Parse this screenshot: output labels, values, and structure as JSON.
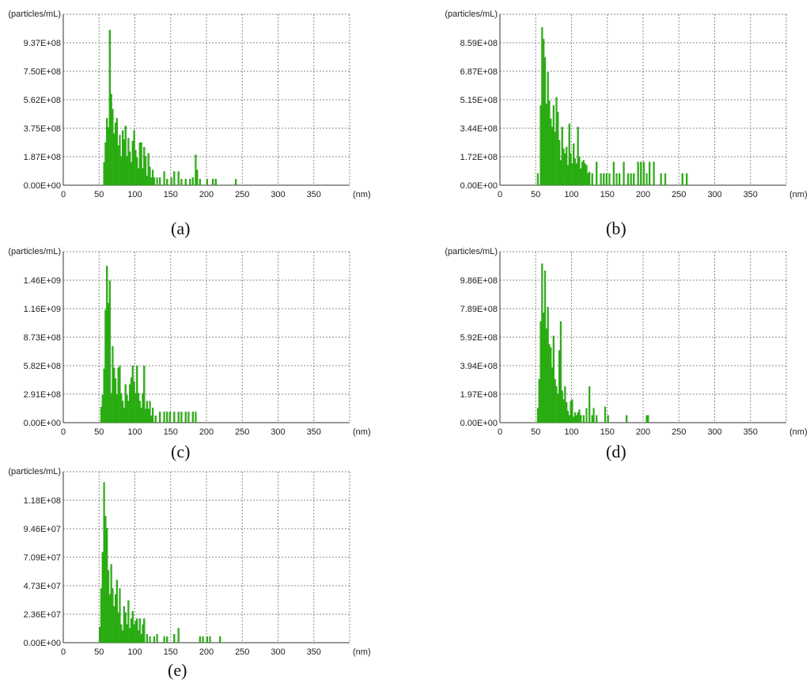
{
  "style": {
    "bar_color": "#2db814",
    "bar_stroke": "#1f8a0c"
  },
  "chart_data": [
    {
      "type": "bar",
      "caption": "(a)",
      "ylabel": "(particles/mL)",
      "xlabel": "(nm)",
      "xlim": [
        0,
        400
      ],
      "ylim": [
        0,
        1124000000
      ],
      "xticks": [
        "0",
        "50",
        "100",
        "150",
        "200",
        "250",
        "300",
        "350"
      ],
      "yticks": [
        "0.00E+00",
        "1.87E+08",
        "3.75E+08",
        "5.62E+08",
        "7.50E+08",
        "9.37E+08"
      ],
      "bin_width": 2,
      "x": [
        57,
        59,
        61,
        63,
        65,
        67,
        69,
        71,
        73,
        75,
        77,
        79,
        81,
        83,
        85,
        87,
        89,
        91,
        93,
        95,
        97,
        99,
        101,
        103,
        105,
        107,
        109,
        111,
        113,
        115,
        117,
        119,
        121,
        123,
        125,
        127,
        131,
        135,
        141,
        145,
        151,
        155,
        161,
        165,
        171,
        177,
        181,
        185,
        187,
        191,
        201,
        209,
        213,
        241
      ],
      "values": [
        150000000,
        280000000,
        440000000,
        380000000,
        1020000000,
        600000000,
        500000000,
        340000000,
        410000000,
        440000000,
        260000000,
        330000000,
        190000000,
        360000000,
        300000000,
        390000000,
        190000000,
        310000000,
        220000000,
        150000000,
        290000000,
        360000000,
        230000000,
        180000000,
        110000000,
        280000000,
        280000000,
        110000000,
        250000000,
        190000000,
        60000000,
        210000000,
        120000000,
        50000000,
        100000000,
        50000000,
        50000000,
        50000000,
        90000000,
        40000000,
        50000000,
        90000000,
        90000000,
        40000000,
        40000000,
        40000000,
        50000000,
        200000000,
        100000000,
        40000000,
        40000000,
        40000000,
        40000000,
        40000000
      ]
    },
    {
      "type": "bar",
      "caption": "(b)",
      "ylabel": "(particles/mL)",
      "xlabel": "(nm)",
      "xlim": [
        0,
        400
      ],
      "ylim": [
        0,
        1030000000
      ],
      "xticks": [
        "0",
        "50",
        "100",
        "150",
        "200",
        "250",
        "300",
        "350"
      ],
      "yticks": [
        "0.00E+00",
        "1.72E+08",
        "3.44E+08",
        "5.15E+08",
        "6.87E+08",
        "8.59E+08"
      ],
      "bin_width": 2,
      "x": [
        53,
        57,
        59,
        61,
        63,
        65,
        67,
        69,
        71,
        73,
        75,
        77,
        79,
        81,
        83,
        85,
        87,
        89,
        91,
        93,
        95,
        97,
        99,
        101,
        103,
        105,
        107,
        109,
        111,
        113,
        115,
        117,
        119,
        121,
        123,
        125,
        129,
        135,
        141,
        145,
        149,
        153,
        159,
        163,
        167,
        173,
        179,
        183,
        187,
        193,
        197,
        201,
        205,
        209,
        215,
        225,
        231,
        255,
        261
      ],
      "values": [
        70000000,
        480000000,
        950000000,
        880000000,
        770000000,
        490000000,
        680000000,
        510000000,
        400000000,
        350000000,
        480000000,
        320000000,
        530000000,
        440000000,
        270000000,
        150000000,
        350000000,
        220000000,
        190000000,
        230000000,
        120000000,
        370000000,
        190000000,
        130000000,
        250000000,
        160000000,
        130000000,
        350000000,
        170000000,
        100000000,
        140000000,
        150000000,
        130000000,
        120000000,
        70000000,
        80000000,
        70000000,
        140000000,
        70000000,
        70000000,
        70000000,
        70000000,
        140000000,
        70000000,
        70000000,
        140000000,
        70000000,
        70000000,
        70000000,
        140000000,
        140000000,
        140000000,
        70000000,
        140000000,
        140000000,
        70000000,
        70000000,
        70000000,
        70000000
      ]
    },
    {
      "type": "bar",
      "caption": "(c)",
      "ylabel": "(particles/mL)",
      "xlabel": "(nm)",
      "xlim": [
        0,
        400
      ],
      "ylim": [
        0,
        1746000000
      ],
      "xticks": [
        "0",
        "50",
        "100",
        "150",
        "200",
        "250",
        "300",
        "350"
      ],
      "yticks": [
        "0.00E+00",
        "2.91E+08",
        "5.82E+08",
        "8.73E+08",
        "1.16E+09",
        "1.46E+09"
      ],
      "bin_width": 2,
      "x": [
        53,
        55,
        57,
        59,
        61,
        63,
        65,
        67,
        69,
        71,
        73,
        75,
        77,
        79,
        81,
        83,
        85,
        87,
        89,
        91,
        93,
        95,
        97,
        99,
        101,
        103,
        105,
        107,
        109,
        111,
        113,
        115,
        117,
        119,
        121,
        123,
        125,
        129,
        135,
        141,
        145,
        149,
        155,
        161,
        165,
        171,
        175,
        181,
        185
      ],
      "values": [
        160000000,
        280000000,
        550000000,
        1150000000,
        1600000000,
        1220000000,
        1450000000,
        300000000,
        780000000,
        560000000,
        450000000,
        290000000,
        560000000,
        580000000,
        300000000,
        220000000,
        150000000,
        390000000,
        280000000,
        220000000,
        390000000,
        460000000,
        580000000,
        420000000,
        300000000,
        580000000,
        300000000,
        220000000,
        150000000,
        300000000,
        580000000,
        140000000,
        220000000,
        140000000,
        220000000,
        70000000,
        150000000,
        70000000,
        110000000,
        110000000,
        110000000,
        110000000,
        110000000,
        110000000,
        110000000,
        110000000,
        110000000,
        110000000,
        110000000
      ]
    },
    {
      "type": "bar",
      "caption": "(d)",
      "ylabel": "(particles/mL)",
      "xlabel": "(nm)",
      "xlim": [
        0,
        400
      ],
      "ylim": [
        0,
        1183000000
      ],
      "xticks": [
        "0",
        "50",
        "100",
        "150",
        "200",
        "250",
        "300",
        "350"
      ],
      "yticks": [
        "0.00E+00",
        "1.97E+08",
        "3.94E+08",
        "5.92E+08",
        "7.89E+08",
        "9.86E+08"
      ],
      "bin_width": 2,
      "x": [
        53,
        55,
        57,
        59,
        61,
        63,
        65,
        67,
        69,
        71,
        73,
        75,
        77,
        79,
        81,
        83,
        85,
        87,
        89,
        91,
        93,
        95,
        97,
        99,
        101,
        103,
        105,
        107,
        109,
        111,
        113,
        117,
        121,
        125,
        129,
        131,
        135,
        147,
        151,
        177,
        205,
        207
      ],
      "values": [
        100000000,
        300000000,
        700000000,
        1100000000,
        760000000,
        1050000000,
        650000000,
        800000000,
        540000000,
        520000000,
        380000000,
        600000000,
        300000000,
        250000000,
        200000000,
        500000000,
        700000000,
        220000000,
        160000000,
        250000000,
        140000000,
        80000000,
        50000000,
        150000000,
        160000000,
        40000000,
        70000000,
        50000000,
        70000000,
        90000000,
        50000000,
        50000000,
        100000000,
        250000000,
        50000000,
        100000000,
        50000000,
        110000000,
        50000000,
        50000000,
        50000000,
        50000000
      ]
    },
    {
      "type": "bar",
      "caption": "(e)",
      "ylabel": "(particles/mL)",
      "xlabel": "(nm)",
      "xlim": [
        0,
        400
      ],
      "ylim": [
        0,
        141900000
      ],
      "xticks": [
        "0",
        "50",
        "100",
        "150",
        "200",
        "250",
        "300",
        "350"
      ],
      "yticks": [
        "0.00E+00",
        "2.36E+07",
        "4.73E+07",
        "7.09E+07",
        "9.46E+07",
        "1.18E+08"
      ],
      "bin_width": 2,
      "x": [
        51,
        53,
        55,
        57,
        59,
        61,
        63,
        65,
        67,
        69,
        71,
        73,
        75,
        77,
        79,
        81,
        83,
        85,
        87,
        89,
        91,
        93,
        95,
        97,
        99,
        101,
        103,
        105,
        107,
        109,
        111,
        113,
        117,
        121,
        127,
        131,
        141,
        145,
        155,
        161,
        191,
        195,
        201,
        205,
        219
      ],
      "values": [
        13000000,
        45000000,
        75000000,
        133000000,
        105000000,
        95000000,
        60000000,
        40000000,
        65000000,
        45000000,
        30000000,
        40000000,
        52000000,
        25000000,
        45000000,
        15000000,
        10000000,
        30000000,
        25000000,
        15000000,
        35000000,
        12000000,
        20000000,
        26000000,
        15000000,
        18000000,
        20000000,
        10000000,
        20000000,
        7000000,
        15000000,
        20000000,
        7000000,
        5000000,
        5000000,
        7000000,
        5000000,
        5000000,
        7000000,
        12000000,
        5000000,
        5000000,
        5000000,
        5000000,
        5000000
      ]
    }
  ]
}
